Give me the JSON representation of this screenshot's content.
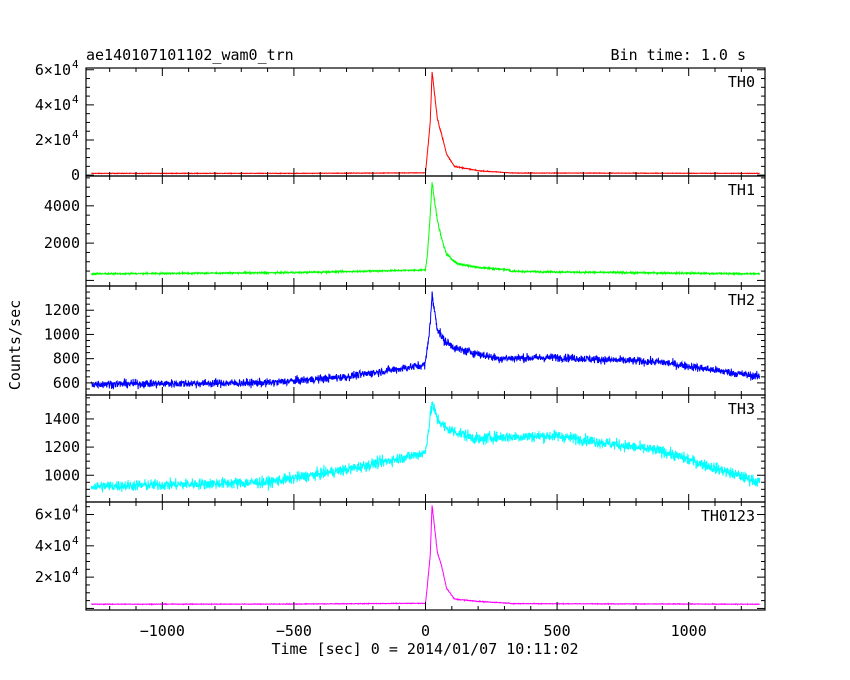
{
  "header": {
    "title": "ae140107101102_wam0_trn",
    "bin_time": "Bin time: 1.0 s"
  },
  "axes": {
    "xlabel": "Time [sec] 0 = 2014/01/07 10:11:02",
    "ylabel": "Counts/sec"
  },
  "chart_data": {
    "type": "line",
    "title": "ae140107101102_wam0_trn",
    "xlabel": "Time [sec] 0 = 2014/01/07 10:11:02",
    "ylabel": "Counts/sec",
    "xlim": [
      -1290,
      1290
    ],
    "x_ticks": [
      -1000,
      -500,
      0,
      500,
      1000
    ],
    "x_tick_labels": [
      "−1000",
      "−500",
      "0",
      "500",
      "1000"
    ],
    "x_range_data": [
      -1270,
      1270
    ],
    "bin_time_s": 1.0,
    "panels": [
      {
        "name": "TH0",
        "color": "#ff0000",
        "ylim": [
          -500,
          61000
        ],
        "y_ticks": [
          0,
          20000,
          40000,
          60000
        ],
        "y_tick_labels": [
          {
            "mant": "0",
            "exp": ""
          },
          {
            "mant": "2×10",
            "exp": "4"
          },
          {
            "mant": "4×10",
            "exp": "4"
          },
          {
            "mant": "6×10",
            "exp": "4"
          }
        ],
        "baseline_points": [
          [
            -1270,
            1000
          ],
          [
            -500,
            1000
          ],
          [
            0,
            1300
          ],
          [
            1270,
            1000
          ]
        ],
        "noise": 150,
        "burst": {
          "base": 1300,
          "peak": 59000,
          "t_peak": 25,
          "shoulder": [
            [
              8,
              14000
            ],
            [
              18,
              30000
            ],
            [
              45,
              32000
            ],
            [
              60,
              24000
            ],
            [
              80,
              12000
            ],
            [
              110,
              5000
            ],
            [
              200,
              2500
            ],
            [
              300,
              1500
            ]
          ]
        }
      },
      {
        "name": "TH1",
        "color": "#00ff00",
        "ylim": [
          -300,
          5600
        ],
        "y_ticks": [
          2000,
          4000
        ],
        "y_tick_labels": [
          {
            "mant": "2000",
            "exp": ""
          },
          {
            "mant": "4000",
            "exp": ""
          }
        ],
        "baseline_points": [
          [
            -1270,
            350
          ],
          [
            -500,
            420
          ],
          [
            0,
            560
          ],
          [
            500,
            450
          ],
          [
            1270,
            350
          ]
        ],
        "noise": 40,
        "burst": {
          "base": 560,
          "peak": 5300,
          "t_peak": 25,
          "shoulder": [
            [
              8,
              1500
            ],
            [
              18,
              3500
            ],
            [
              45,
              3200
            ],
            [
              60,
              2300
            ],
            [
              80,
              1400
            ],
            [
              120,
              900
            ],
            [
              200,
              700
            ]
          ]
        }
      },
      {
        "name": "TH2",
        "color": "#0000ff",
        "ylim": [
          500,
          1400
        ],
        "y_ticks": [
          600,
          800,
          1000,
          1200
        ],
        "y_tick_labels": [
          {
            "mant": "600",
            "exp": ""
          },
          {
            "mant": "800",
            "exp": ""
          },
          {
            "mant": "1000",
            "exp": ""
          },
          {
            "mant": "1200",
            "exp": ""
          }
        ],
        "baseline_points": [
          [
            -1270,
            590
          ],
          [
            -600,
            600
          ],
          [
            -300,
            650
          ],
          [
            0,
            750
          ],
          [
            200,
            800
          ],
          [
            500,
            810
          ],
          [
            900,
            770
          ],
          [
            1270,
            650
          ]
        ],
        "noise": 32,
        "burst": {
          "base": 780,
          "peak": 1320,
          "t_peak": 25,
          "shoulder": [
            [
              8,
              900
            ],
            [
              18,
              1100
            ],
            [
              45,
              1050
            ],
            [
              70,
              950
            ],
            [
              120,
              880
            ]
          ]
        }
      },
      {
        "name": "TH3",
        "color": "#00ffff",
        "ylim": [
          810,
          1570
        ],
        "y_ticks": [
          1000,
          1200,
          1400
        ],
        "y_tick_labels": [
          {
            "mant": "1000",
            "exp": ""
          },
          {
            "mant": "1200",
            "exp": ""
          },
          {
            "mant": "1400",
            "exp": ""
          }
        ],
        "baseline_points": [
          [
            -1270,
            920
          ],
          [
            -600,
            950
          ],
          [
            -300,
            1040
          ],
          [
            0,
            1160
          ],
          [
            250,
            1270
          ],
          [
            500,
            1280
          ],
          [
            900,
            1170
          ],
          [
            1270,
            950
          ]
        ],
        "noise": 38,
        "burst": {
          "base": 1180,
          "peak": 1510,
          "t_peak": 25,
          "shoulder": [
            [
              10,
              1300
            ],
            [
              45,
              1400
            ],
            [
              80,
              1330
            ]
          ]
        }
      },
      {
        "name": "TH0123",
        "color": "#ff00ff",
        "ylim": [
          -1000,
          68000
        ],
        "y_ticks": [
          20000,
          40000,
          60000
        ],
        "y_tick_labels": [
          {
            "mant": "2×10",
            "exp": "4"
          },
          {
            "mant": "4×10",
            "exp": "4"
          },
          {
            "mant": "6×10",
            "exp": "4"
          }
        ],
        "baseline_points": [
          [
            -1270,
            2700
          ],
          [
            -500,
            2800
          ],
          [
            0,
            3300
          ],
          [
            500,
            3000
          ],
          [
            1270,
            2700
          ]
        ],
        "noise": 200,
        "burst": {
          "base": 3300,
          "peak": 66000,
          "t_peak": 25,
          "shoulder": [
            [
              8,
              16000
            ],
            [
              18,
              34000
            ],
            [
              45,
              36000
            ],
            [
              60,
              28000
            ],
            [
              80,
              13000
            ],
            [
              110,
              6000
            ],
            [
              200,
              4500
            ]
          ]
        }
      }
    ]
  }
}
